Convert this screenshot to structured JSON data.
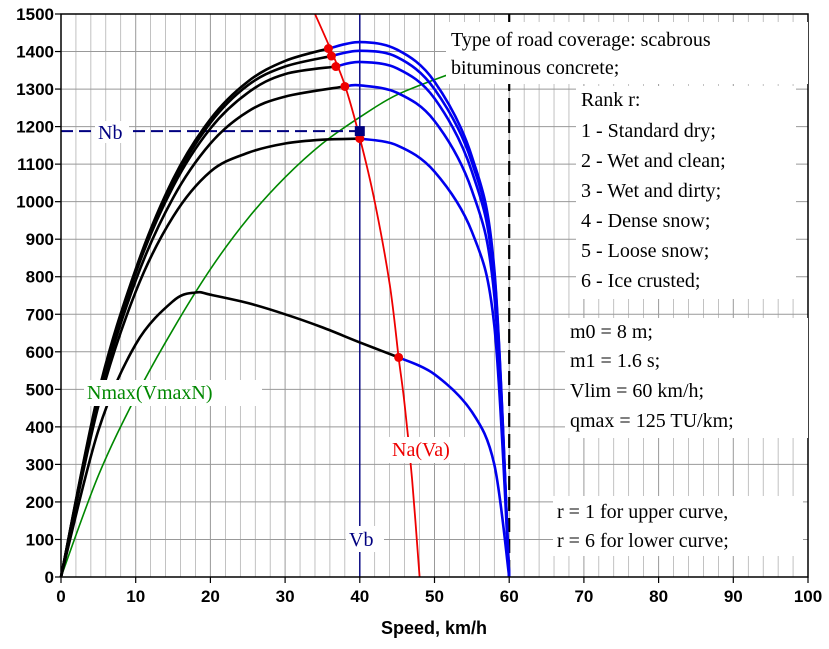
{
  "chart_data": {
    "type": "line",
    "xlabel": "Speed, km/h",
    "ylabel": "",
    "xlim": [
      0,
      100
    ],
    "ylim": [
      0,
      1500
    ],
    "xticks": [
      0,
      10,
      20,
      30,
      40,
      50,
      60,
      70,
      80,
      90,
      100
    ],
    "yticks": [
      0,
      100,
      200,
      300,
      400,
      500,
      600,
      700,
      800,
      900,
      1000,
      1100,
      1200,
      1300,
      1400,
      1500
    ],
    "grid": true,
    "vmax": 60,
    "vb": 40,
    "nb": 1188,
    "series": [
      {
        "rank": 1,
        "black": [
          [
            0,
            0
          ],
          [
            5,
            490
          ],
          [
            10,
            820
          ],
          [
            15,
            1060
          ],
          [
            20,
            1220
          ],
          [
            25,
            1320
          ],
          [
            30,
            1375
          ],
          [
            35.8,
            1408
          ]
        ],
        "blue": [
          [
            35.8,
            1408
          ],
          [
            40,
            1425
          ],
          [
            45,
            1405
          ],
          [
            50,
            1320
          ],
          [
            55,
            1120
          ],
          [
            58,
            820
          ],
          [
            60,
            0
          ]
        ]
      },
      {
        "rank": 2,
        "black": [
          [
            0,
            0
          ],
          [
            5,
            485
          ],
          [
            10,
            815
          ],
          [
            15,
            1050
          ],
          [
            20,
            1210
          ],
          [
            25,
            1310
          ],
          [
            30,
            1360
          ],
          [
            36.2,
            1388
          ]
        ],
        "blue": [
          [
            36.2,
            1388
          ],
          [
            40,
            1402
          ],
          [
            45,
            1385
          ],
          [
            50,
            1300
          ],
          [
            55,
            1105
          ],
          [
            58,
            810
          ],
          [
            60,
            0
          ]
        ]
      },
      {
        "rank": 3,
        "black": [
          [
            0,
            0
          ],
          [
            5,
            482
          ],
          [
            10,
            810
          ],
          [
            15,
            1040
          ],
          [
            20,
            1195
          ],
          [
            25,
            1290
          ],
          [
            30,
            1340
          ],
          [
            36.8,
            1360
          ]
        ],
        "blue": [
          [
            36.8,
            1360
          ],
          [
            40,
            1372
          ],
          [
            45,
            1355
          ],
          [
            50,
            1275
          ],
          [
            55,
            1080
          ],
          [
            58,
            790
          ],
          [
            60,
            0
          ]
        ]
      },
      {
        "rank": 4,
        "black": [
          [
            0,
            0
          ],
          [
            5,
            470
          ],
          [
            10,
            790
          ],
          [
            15,
            1010
          ],
          [
            20,
            1155
          ],
          [
            25,
            1240
          ],
          [
            30,
            1280
          ],
          [
            38,
            1307
          ]
        ],
        "blue": [
          [
            38,
            1307
          ],
          [
            40,
            1310
          ],
          [
            45,
            1290
          ],
          [
            50,
            1215
          ],
          [
            55,
            1030
          ],
          [
            58,
            750
          ],
          [
            60,
            0
          ]
        ]
      },
      {
        "rank": 5,
        "black": [
          [
            0,
            0
          ],
          [
            5,
            455
          ],
          [
            10,
            760
          ],
          [
            15,
            960
          ],
          [
            20,
            1080
          ],
          [
            25,
            1130
          ],
          [
            30,
            1155
          ],
          [
            35,
            1165
          ],
          [
            40,
            1168
          ]
        ],
        "blue": [
          [
            40,
            1168
          ],
          [
            45,
            1150
          ],
          [
            50,
            1080
          ],
          [
            55,
            920
          ],
          [
            58,
            670
          ],
          [
            60,
            0
          ]
        ]
      },
      {
        "rank": 6,
        "black": [
          [
            0,
            0
          ],
          [
            5,
            390
          ],
          [
            10,
            620
          ],
          [
            15,
            735
          ],
          [
            18,
            758
          ],
          [
            20,
            752
          ],
          [
            25,
            730
          ],
          [
            30,
            700
          ],
          [
            35,
            665
          ],
          [
            40,
            625
          ],
          [
            45.2,
            585
          ]
        ],
        "blue": [
          [
            45.2,
            585
          ],
          [
            50,
            540
          ],
          [
            55,
            440
          ],
          [
            58,
            300
          ],
          [
            60,
            0
          ]
        ]
      }
    ],
    "na_curve": [
      [
        34,
        1500
      ],
      [
        36,
        1410
      ],
      [
        38,
        1310
      ],
      [
        40,
        1170
      ],
      [
        42,
        1000
      ],
      [
        44,
        780
      ],
      [
        45.2,
        585
      ],
      [
        46,
        460
      ],
      [
        47,
        260
      ],
      [
        48,
        0
      ]
    ],
    "nmax_curve": [
      [
        0,
        0
      ],
      [
        5,
        270
      ],
      [
        10,
        480
      ],
      [
        15,
        660
      ],
      [
        20,
        820
      ],
      [
        25,
        955
      ],
      [
        30,
        1065
      ],
      [
        35,
        1155
      ],
      [
        40,
        1225
      ],
      [
        45,
        1285
      ],
      [
        52,
        1340
      ]
    ],
    "intersection_points": [
      [
        35.8,
        1408
      ],
      [
        36.2,
        1388
      ],
      [
        36.8,
        1360
      ],
      [
        38,
        1307
      ],
      [
        40,
        1168
      ],
      [
        45.2,
        585
      ]
    ]
  },
  "labels": {
    "nb": "Nb",
    "vb": "Vb",
    "na": "Na(Va)",
    "nmax": "Nmax(VmaxN)",
    "coverage_line1": "Type of road coverage: scabrous",
    "coverage_line2": "bituminous concrete;",
    "rank_title": "Rank r:",
    "ranks": [
      "1 - Standard dry;",
      "2 - Wet and clean;",
      "3 - Wet and dirty;",
      "4 - Dense snow;",
      "5 - Loose snow;",
      "6 - Ice crusted;"
    ],
    "params": [
      "m0 = 8 m;",
      "m1 = 1.6 s;",
      "Vlim = 60 km/h;",
      "qmax = 125 TU/km;"
    ],
    "curve_notes": [
      "r = 1  for upper curve,",
      "r = 6  for lower curve;"
    ]
  },
  "colors": {
    "black_curve": "#000000",
    "blue_curve": "#0000ee",
    "red_curve": "#ee0000",
    "green_curve": "#008800",
    "navy": "#000080",
    "grid": "#999999"
  }
}
